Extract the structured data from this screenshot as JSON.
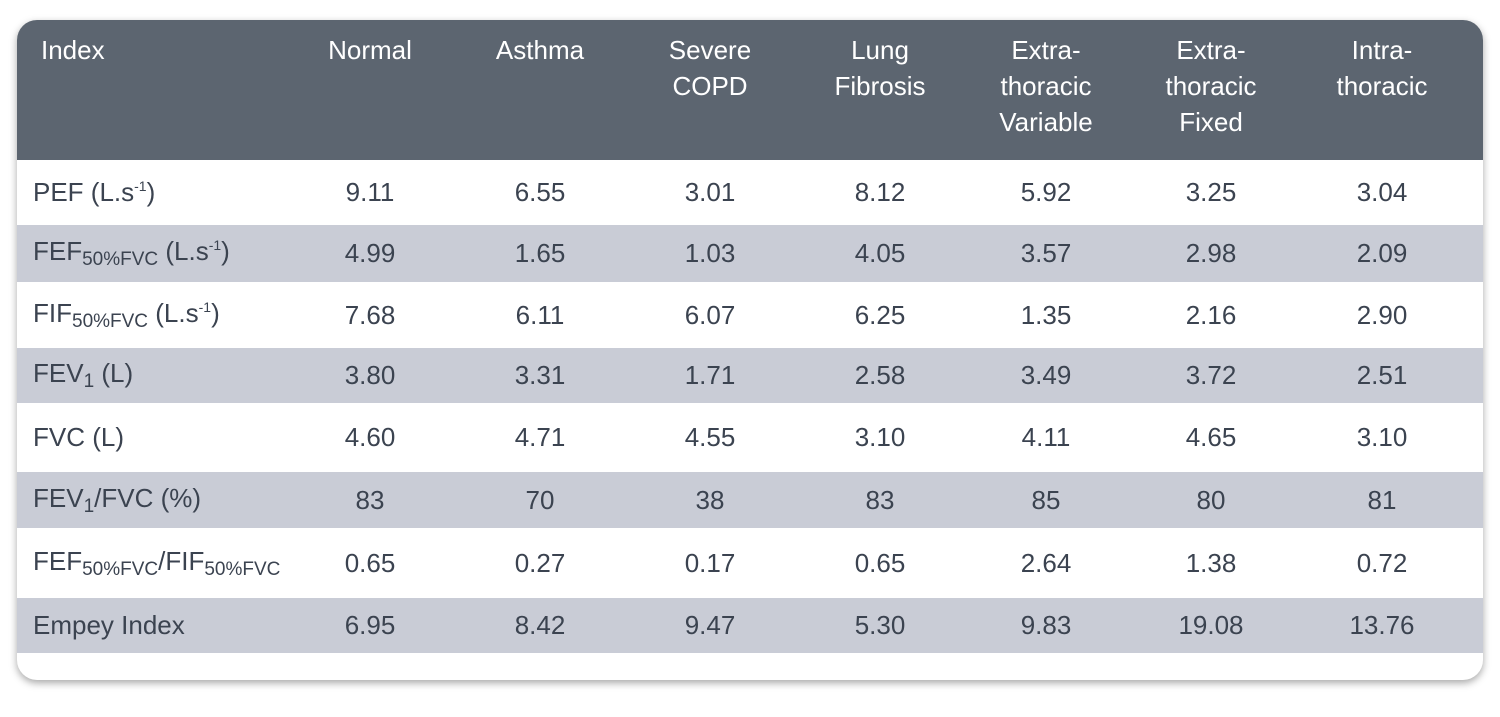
{
  "table": {
    "header": [
      [
        "Index"
      ],
      [
        "Normal"
      ],
      [
        "Asthma"
      ],
      [
        "Severe",
        "COPD"
      ],
      [
        "Lung",
        "Fibrosis"
      ],
      [
        "Extra-",
        "thoracic",
        "Variable"
      ],
      [
        "Extra-",
        "thoracic",
        "Fixed"
      ],
      [
        "Intra-",
        "thoracic"
      ]
    ],
    "rows": [
      [
        [
          {
            "text": "PEF (L.s"
          },
          {
            "sup": "-1"
          },
          {
            "text": ")"
          }
        ],
        "9.11",
        "6.55",
        "3.01",
        "8.12",
        "5.92",
        "3.25",
        "3.04"
      ],
      [
        [
          {
            "text": "FEF"
          },
          {
            "sub": "50%FVC"
          },
          {
            "text": " (L.s"
          },
          {
            "sup": "-1"
          },
          {
            "text": ")"
          }
        ],
        "4.99",
        "1.65",
        "1.03",
        "4.05",
        "3.57",
        "2.98",
        "2.09"
      ],
      [
        [
          {
            "text": "FIF"
          },
          {
            "sub": "50%FVC"
          },
          {
            "text": " (L.s"
          },
          {
            "sup": "-1"
          },
          {
            "text": ")"
          }
        ],
        "7.68",
        "6.11",
        "6.07",
        "6.25",
        "1.35",
        "2.16",
        "2.90"
      ],
      [
        [
          {
            "text": "FEV"
          },
          {
            "sub": "1"
          },
          {
            "text": " (L)"
          }
        ],
        "3.80",
        "3.31",
        "1.71",
        "2.58",
        "3.49",
        "3.72",
        "2.51"
      ],
      [
        [
          {
            "text": "FVC (L)"
          }
        ],
        "4.60",
        "4.71",
        "4.55",
        "3.10",
        "4.11",
        "4.65",
        "3.10"
      ],
      [
        [
          {
            "text": "FEV"
          },
          {
            "sub": "1"
          },
          {
            "text": "/FVC (%)"
          }
        ],
        "83",
        "70",
        "38",
        "83",
        "85",
        "80",
        "81"
      ],
      [
        [
          {
            "text": "FEF"
          },
          {
            "sub": "50%FVC"
          },
          {
            "text": "/FIF"
          },
          {
            "sub": "50%FVC"
          }
        ],
        "0.65",
        "0.27",
        "0.17",
        "0.65",
        "2.64",
        "1.38",
        "0.72"
      ],
      [
        [
          {
            "text": "Empey Index"
          }
        ],
        "6.95",
        "8.42",
        "9.47",
        "5.30",
        "9.83",
        "19.08",
        "13.76"
      ]
    ]
  }
}
